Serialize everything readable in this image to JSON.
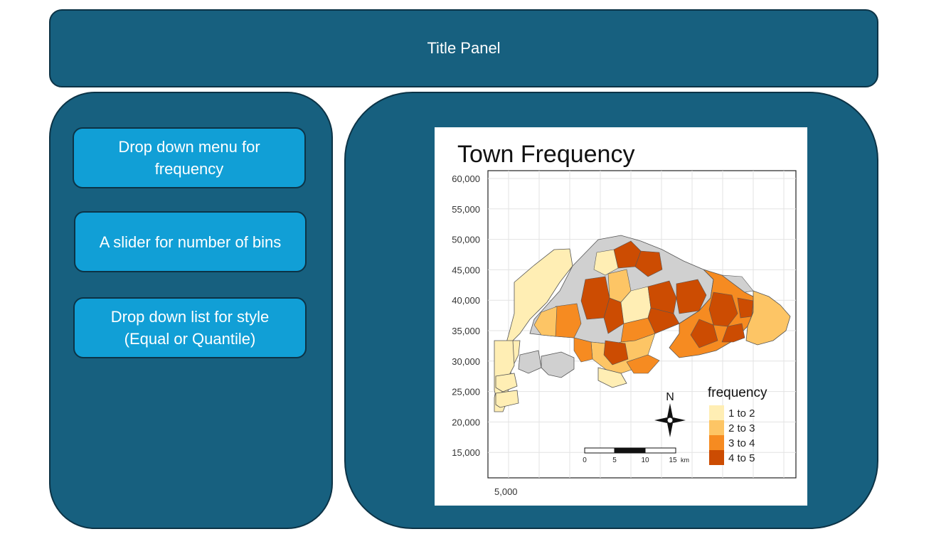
{
  "title_panel": {
    "label": "Title Panel"
  },
  "sidebar": {
    "frequency_menu": {
      "line1": "Drop down menu for",
      "line2": "frequency"
    },
    "bins_slider": {
      "label": "A slider for number of bins"
    },
    "style_list": {
      "line1": "Drop down list for style",
      "line2": "(Equal or Quantile)"
    }
  },
  "map": {
    "title": "Town Frequency",
    "y_ticks": [
      "60,000",
      "55,000",
      "50,000",
      "45,000",
      "40,000",
      "35,000",
      "30,000",
      "25,000",
      "20,000",
      "15,000"
    ],
    "x_tick": "5,000",
    "north_label": "N",
    "scale_bar": {
      "labels": [
        "0",
        "5",
        "10",
        "15"
      ],
      "unit": "km"
    },
    "legend": {
      "title": "frequency",
      "items": [
        {
          "label": "1 to 2",
          "color": "#ffeeb4"
        },
        {
          "label": "2 to 3",
          "color": "#fdc565"
        },
        {
          "label": "3 to 4",
          "color": "#f68b21"
        },
        {
          "label": "4 to 5",
          "color": "#cc4c02"
        }
      ]
    },
    "missing_color": "#d0d0d0"
  }
}
